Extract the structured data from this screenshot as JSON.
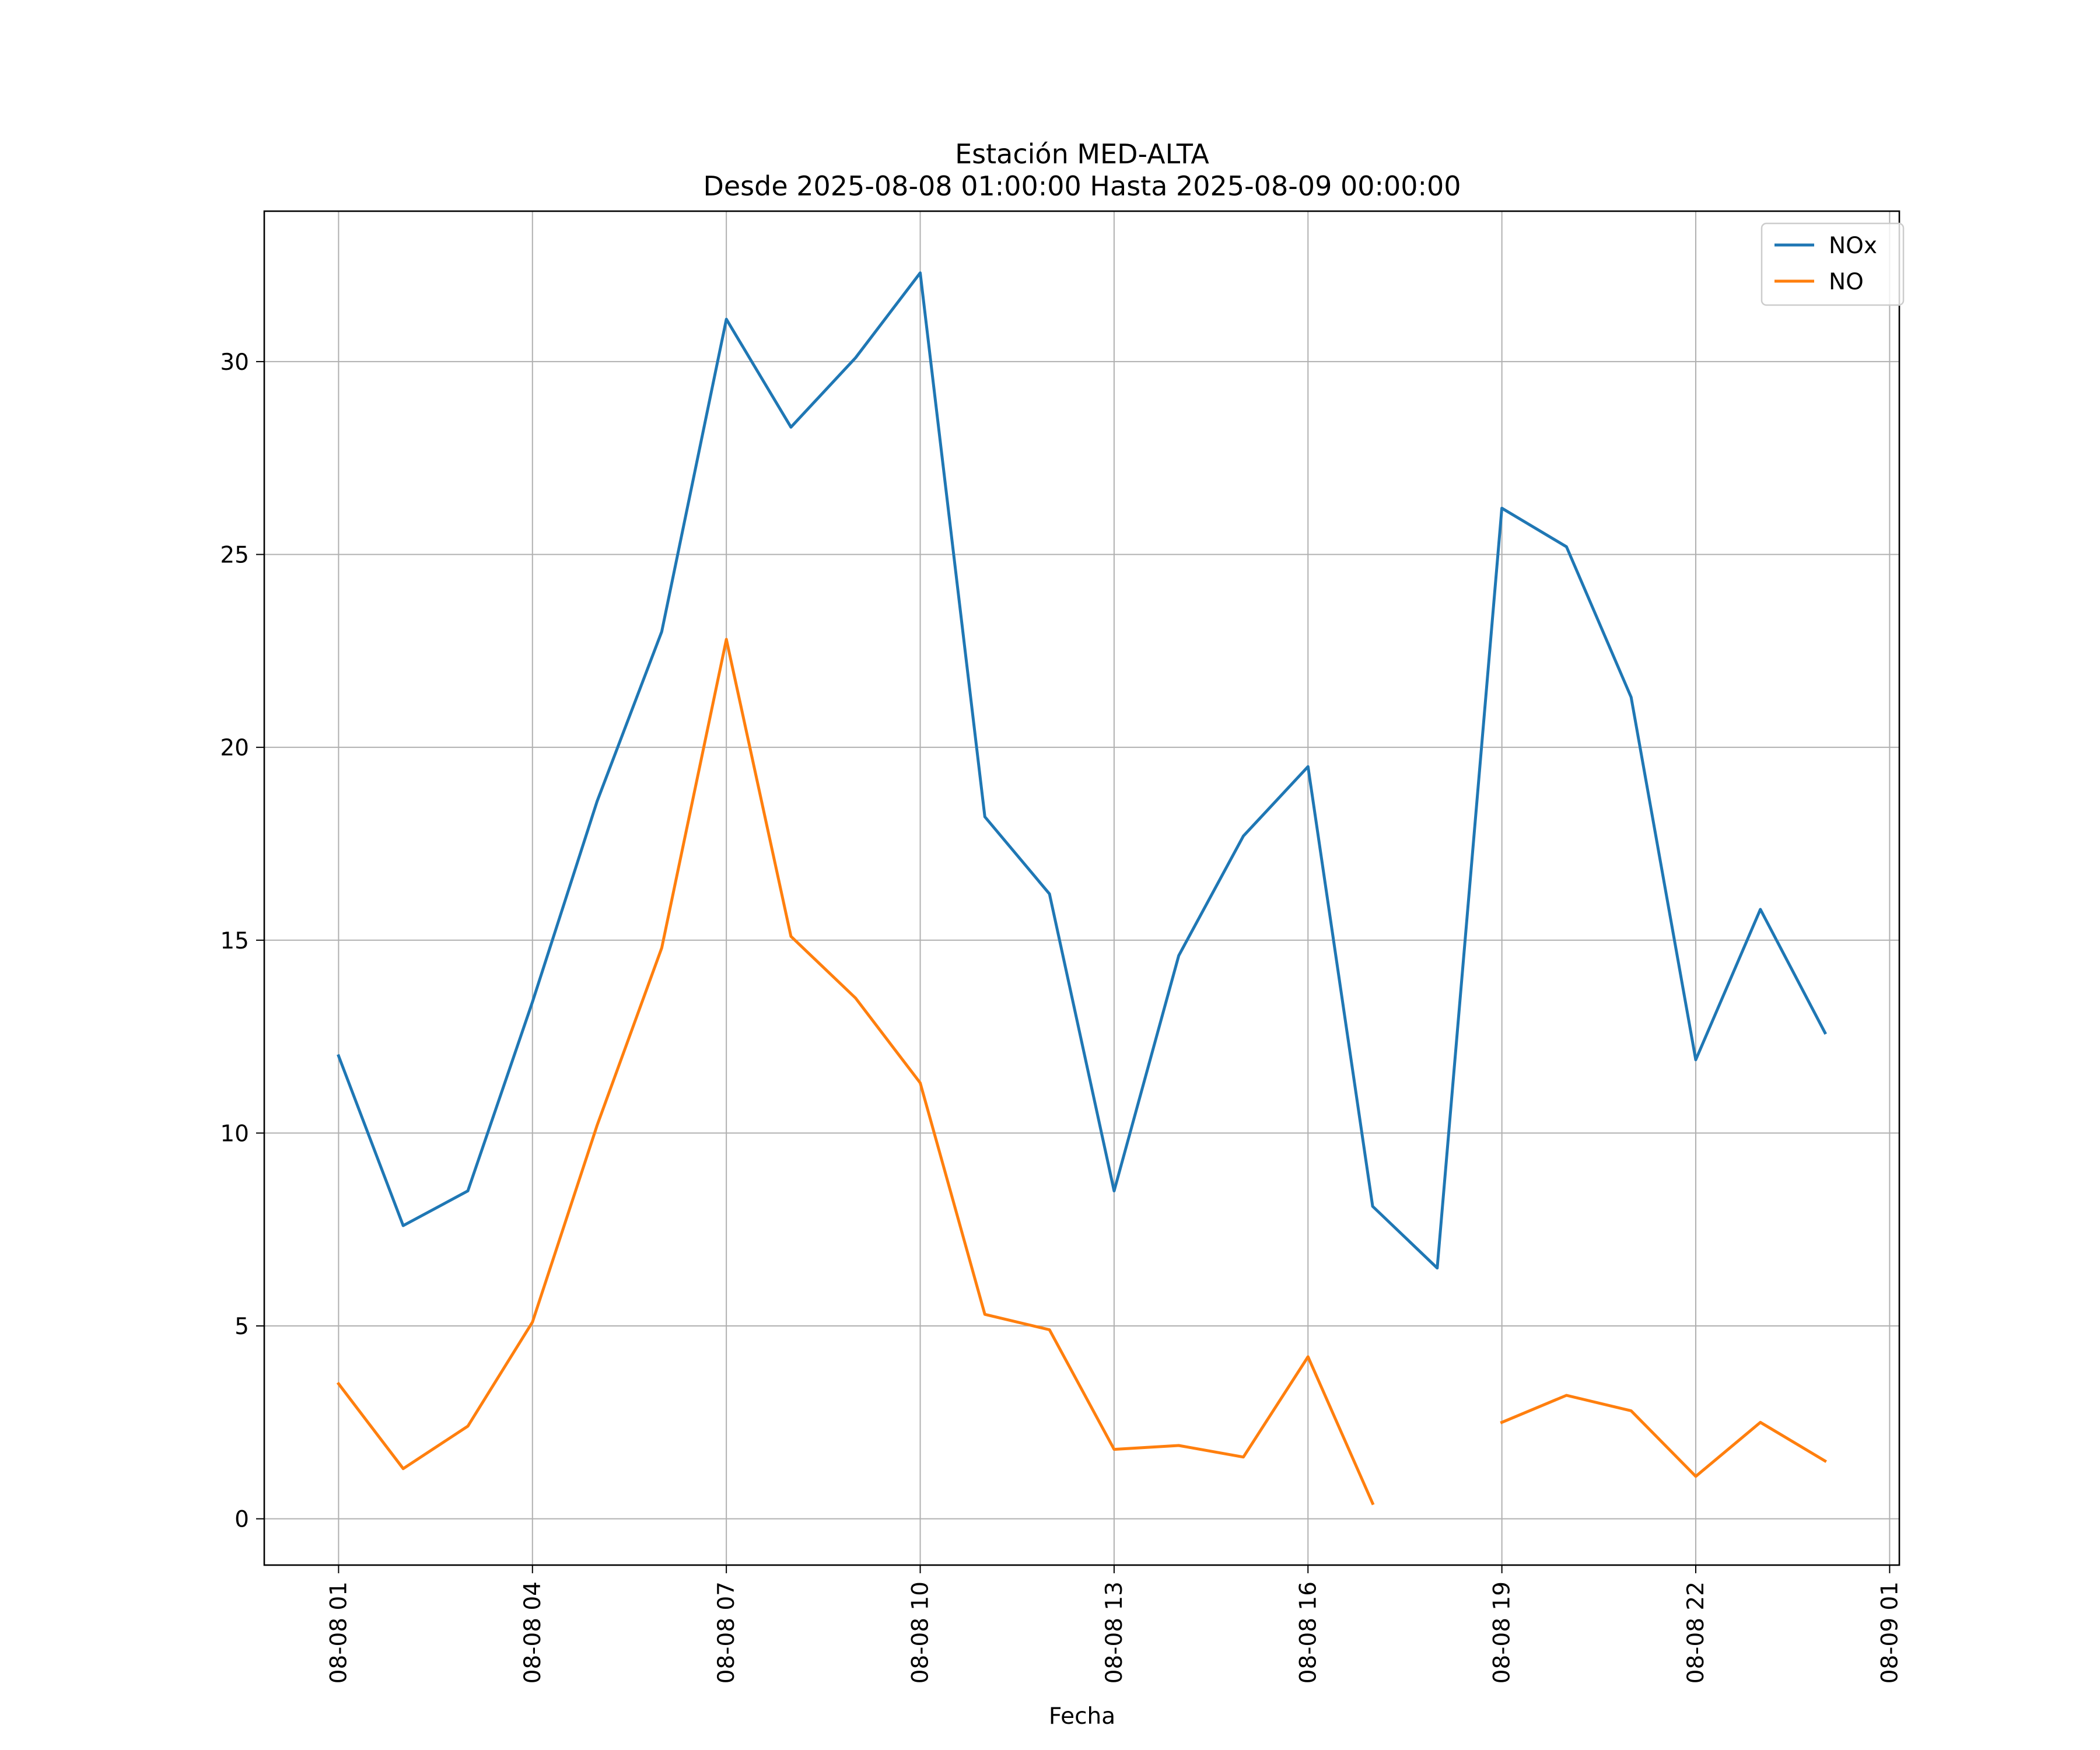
{
  "chart_data": {
    "type": "line",
    "title": "Estación MED-ALTA",
    "subtitle": "Desde 2025-08-08 01:00:00 Hasta 2025-08-09 00:00:00",
    "xlabel": "Fecha",
    "ylabel": "",
    "x": [
      1,
      2,
      3,
      4,
      5,
      6,
      7,
      8,
      9,
      10,
      11,
      12,
      13,
      14,
      15,
      16,
      17,
      18,
      19,
      20,
      21,
      22,
      23,
      24
    ],
    "xlim": [
      -0.15,
      25.15
    ],
    "ylim": [
      -1.2,
      33.9
    ],
    "x_ticks": [
      {
        "value": 1,
        "label": "08-08 01"
      },
      {
        "value": 4,
        "label": "08-08 04"
      },
      {
        "value": 7,
        "label": "08-08 07"
      },
      {
        "value": 10,
        "label": "08-08 10"
      },
      {
        "value": 13,
        "label": "08-08 13"
      },
      {
        "value": 16,
        "label": "08-08 16"
      },
      {
        "value": 19,
        "label": "08-08 19"
      },
      {
        "value": 22,
        "label": "08-08 22"
      },
      {
        "value": 25,
        "label": "08-09 01"
      }
    ],
    "y_ticks": [
      {
        "value": 0,
        "label": "0"
      },
      {
        "value": 5,
        "label": "5"
      },
      {
        "value": 10,
        "label": "10"
      },
      {
        "value": 15,
        "label": "15"
      },
      {
        "value": 20,
        "label": "20"
      },
      {
        "value": 25,
        "label": "25"
      },
      {
        "value": 30,
        "label": "30"
      }
    ],
    "grid": true,
    "legend_position": "top-right",
    "series": [
      {
        "name": "NOx",
        "color": "#1f77b4",
        "values": [
          12.0,
          7.6,
          8.5,
          13.4,
          18.6,
          23.0,
          31.1,
          28.3,
          30.1,
          32.3,
          18.2,
          16.2,
          8.5,
          14.6,
          17.7,
          19.5,
          8.1,
          6.5,
          26.2,
          25.2,
          21.3,
          11.9,
          15.8,
          12.6
        ]
      },
      {
        "name": "NO",
        "color": "#ff7f0e",
        "values": [
          3.5,
          1.3,
          2.4,
          5.1,
          10.2,
          14.8,
          22.8,
          15.1,
          13.5,
          11.3,
          5.3,
          4.9,
          1.8,
          1.9,
          1.6,
          4.2,
          0.4,
          null,
          2.5,
          3.2,
          2.8,
          1.1,
          2.5,
          1.5
        ]
      }
    ]
  }
}
